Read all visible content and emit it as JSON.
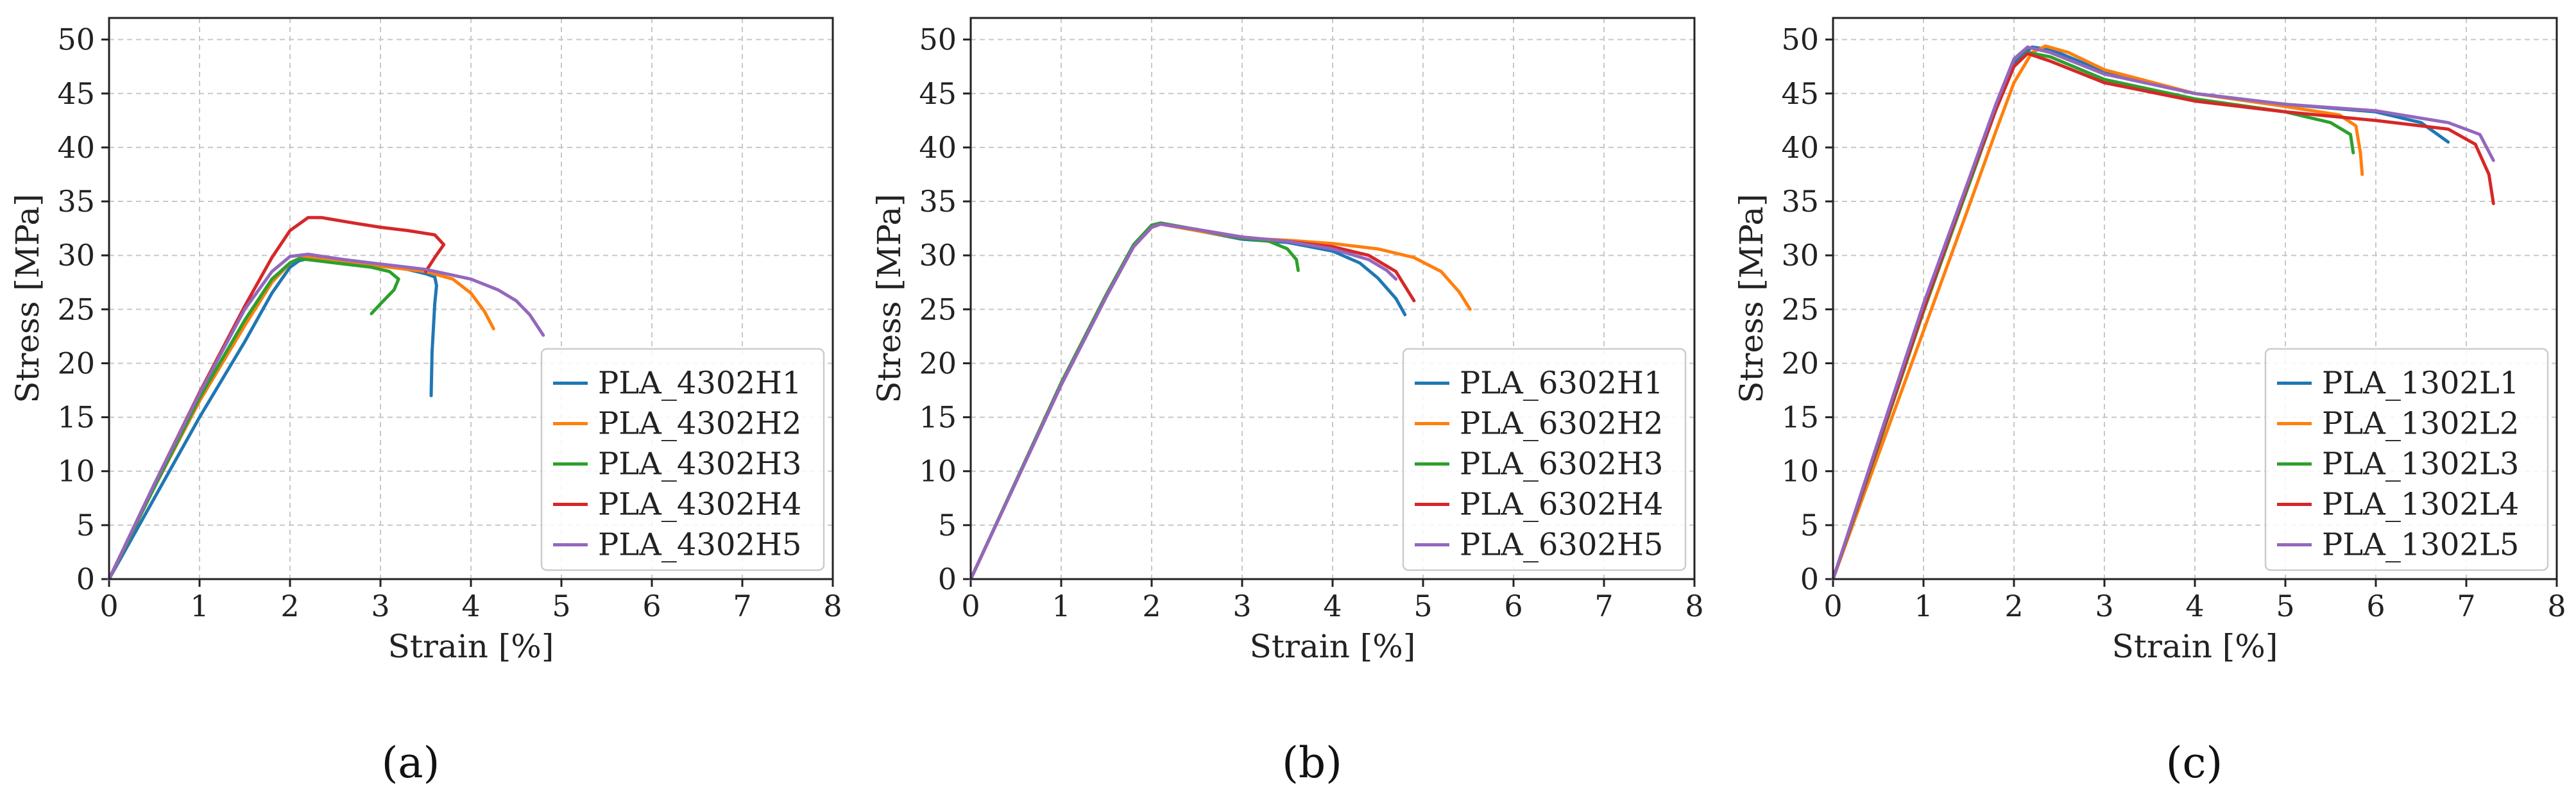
{
  "chart_data": [
    {
      "type": "line",
      "panel_label": "(a)",
      "xlabel": "Strain [%]",
      "ylabel": "Stress [MPa]",
      "xlim": [
        0,
        8
      ],
      "ylim": [
        0,
        52
      ],
      "x_ticks": [
        0,
        1,
        2,
        3,
        4,
        5,
        6,
        7,
        8
      ],
      "y_ticks": [
        0,
        5,
        10,
        15,
        20,
        25,
        30,
        35,
        40,
        45,
        50
      ],
      "grid": true,
      "legend_position": "lower-right",
      "series": [
        {
          "name": "PLA_4302H1",
          "color": "#1f77b4",
          "points": [
            [
              0,
              0
            ],
            [
              0.5,
              7.5
            ],
            [
              1,
              15
            ],
            [
              1.5,
              22
            ],
            [
              1.8,
              26.5
            ],
            [
              2.0,
              28.9
            ],
            [
              2.1,
              29.5
            ],
            [
              2.3,
              29.9
            ],
            [
              2.6,
              29.6
            ],
            [
              3.0,
              29.1
            ],
            [
              3.3,
              28.7
            ],
            [
              3.5,
              28.3
            ],
            [
              3.6,
              28.0
            ],
            [
              3.62,
              27.2
            ],
            [
              3.6,
              25.5
            ],
            [
              3.57,
              21
            ],
            [
              3.56,
              17
            ]
          ]
        },
        {
          "name": "PLA_4302H2",
          "color": "#ff7f0e",
          "points": [
            [
              0,
              0
            ],
            [
              0.5,
              8.5
            ],
            [
              1,
              16.5
            ],
            [
              1.5,
              23.5
            ],
            [
              1.8,
              27.5
            ],
            [
              2.0,
              29.3
            ],
            [
              2.15,
              29.9
            ],
            [
              2.5,
              29.6
            ],
            [
              3.0,
              29.0
            ],
            [
              3.5,
              28.5
            ],
            [
              3.8,
              27.8
            ],
            [
              4.0,
              26.5
            ],
            [
              4.15,
              24.8
            ],
            [
              4.25,
              23.2
            ]
          ]
        },
        {
          "name": "PLA_4302H3",
          "color": "#2ca02c",
          "points": [
            [
              0,
              0
            ],
            [
              0.5,
              8.5
            ],
            [
              1,
              16.8
            ],
            [
              1.5,
              24
            ],
            [
              1.8,
              27.8
            ],
            [
              2.0,
              29.3
            ],
            [
              2.1,
              29.7
            ],
            [
              2.5,
              29.3
            ],
            [
              2.9,
              28.9
            ],
            [
              3.1,
              28.5
            ],
            [
              3.2,
              27.8
            ],
            [
              3.15,
              26.8
            ],
            [
              3.0,
              25.5
            ],
            [
              2.9,
              24.6
            ]
          ]
        },
        {
          "name": "PLA_4302H4",
          "color": "#d62728",
          "points": [
            [
              0,
              0
            ],
            [
              0.5,
              8.8
            ],
            [
              1,
              17.3
            ],
            [
              1.5,
              25.3
            ],
            [
              1.8,
              29.8
            ],
            [
              2.0,
              32.3
            ],
            [
              2.2,
              33.5
            ],
            [
              2.35,
              33.5
            ],
            [
              2.7,
              33.0
            ],
            [
              3.0,
              32.6
            ],
            [
              3.3,
              32.3
            ],
            [
              3.6,
              31.9
            ],
            [
              3.7,
              31.0
            ],
            [
              3.6,
              29.8
            ],
            [
              3.5,
              28.5
            ]
          ]
        },
        {
          "name": "PLA_4302H5",
          "color": "#9467bd",
          "points": [
            [
              0,
              0
            ],
            [
              0.5,
              8.8
            ],
            [
              1,
              17.2
            ],
            [
              1.5,
              25
            ],
            [
              1.8,
              28.5
            ],
            [
              2.0,
              29.9
            ],
            [
              2.2,
              30.1
            ],
            [
              2.6,
              29.6
            ],
            [
              3.0,
              29.2
            ],
            [
              3.5,
              28.7
            ],
            [
              4.0,
              27.8
            ],
            [
              4.3,
              26.8
            ],
            [
              4.5,
              25.8
            ],
            [
              4.65,
              24.5
            ],
            [
              4.8,
              22.6
            ]
          ]
        }
      ]
    },
    {
      "type": "line",
      "panel_label": "(b)",
      "xlabel": "Strain [%]",
      "ylabel": "Stress [MPa]",
      "xlim": [
        0,
        8
      ],
      "ylim": [
        0,
        52
      ],
      "x_ticks": [
        0,
        1,
        2,
        3,
        4,
        5,
        6,
        7,
        8
      ],
      "y_ticks": [
        0,
        5,
        10,
        15,
        20,
        25,
        30,
        35,
        40,
        45,
        50
      ],
      "grid": true,
      "legend_position": "lower-right",
      "series": [
        {
          "name": "PLA_6302H1",
          "color": "#1f77b4",
          "points": [
            [
              0,
              0
            ],
            [
              0.5,
              9
            ],
            [
              1,
              18
            ],
            [
              1.5,
              26.2
            ],
            [
              1.8,
              30.8
            ],
            [
              2.0,
              32.6
            ],
            [
              2.1,
              32.9
            ],
            [
              2.5,
              32.3
            ],
            [
              3.0,
              31.5
            ],
            [
              3.5,
              31.2
            ],
            [
              4.0,
              30.4
            ],
            [
              4.3,
              29.3
            ],
            [
              4.5,
              27.9
            ],
            [
              4.7,
              26.0
            ],
            [
              4.8,
              24.5
            ]
          ]
        },
        {
          "name": "PLA_6302H2",
          "color": "#ff7f0e",
          "points": [
            [
              0,
              0
            ],
            [
              0.5,
              9
            ],
            [
              1,
              18
            ],
            [
              1.5,
              26.2
            ],
            [
              1.8,
              30.8
            ],
            [
              2.0,
              32.6
            ],
            [
              2.1,
              32.9
            ],
            [
              2.5,
              32.3
            ],
            [
              3.0,
              31.6
            ],
            [
              3.5,
              31.4
            ],
            [
              4.0,
              31.1
            ],
            [
              4.5,
              30.6
            ],
            [
              4.9,
              29.8
            ],
            [
              5.2,
              28.5
            ],
            [
              5.4,
              26.6
            ],
            [
              5.52,
              25.0
            ]
          ]
        },
        {
          "name": "PLA_6302H3",
          "color": "#2ca02c",
          "points": [
            [
              0,
              0
            ],
            [
              0.5,
              9.1
            ],
            [
              1,
              18.2
            ],
            [
              1.5,
              26.4
            ],
            [
              1.8,
              31.0
            ],
            [
              2.0,
              32.8
            ],
            [
              2.1,
              33.0
            ],
            [
              2.5,
              32.4
            ],
            [
              3.0,
              31.6
            ],
            [
              3.3,
              31.3
            ],
            [
              3.5,
              30.6
            ],
            [
              3.6,
              29.6
            ],
            [
              3.62,
              28.6
            ]
          ]
        },
        {
          "name": "PLA_6302H4",
          "color": "#d62728",
          "points": [
            [
              0,
              0
            ],
            [
              0.5,
              9
            ],
            [
              1,
              18
            ],
            [
              1.5,
              26.2
            ],
            [
              1.8,
              30.8
            ],
            [
              2.0,
              32.6
            ],
            [
              2.1,
              32.9
            ],
            [
              2.5,
              32.4
            ],
            [
              3.0,
              31.7
            ],
            [
              3.5,
              31.3
            ],
            [
              4.0,
              30.8
            ],
            [
              4.4,
              30.0
            ],
            [
              4.7,
              28.5
            ],
            [
              4.9,
              25.8
            ]
          ]
        },
        {
          "name": "PLA_6302H5",
          "color": "#9467bd",
          "points": [
            [
              0,
              0
            ],
            [
              0.5,
              9
            ],
            [
              1,
              18
            ],
            [
              1.5,
              26.2
            ],
            [
              1.8,
              30.8
            ],
            [
              2.0,
              32.6
            ],
            [
              2.1,
              32.9
            ],
            [
              2.5,
              32.4
            ],
            [
              3.0,
              31.7
            ],
            [
              3.5,
              31.3
            ],
            [
              4.0,
              30.6
            ],
            [
              4.4,
              29.6
            ],
            [
              4.6,
              28.6
            ],
            [
              4.7,
              27.8
            ]
          ]
        }
      ]
    },
    {
      "type": "line",
      "panel_label": "(c)",
      "xlabel": "Strain [%]",
      "ylabel": "Stress [MPa]",
      "xlim": [
        0,
        8
      ],
      "ylim": [
        0,
        52
      ],
      "x_ticks": [
        0,
        1,
        2,
        3,
        4,
        5,
        6,
        7,
        8
      ],
      "y_ticks": [
        0,
        5,
        10,
        15,
        20,
        25,
        30,
        35,
        40,
        45,
        50
      ],
      "grid": true,
      "legend_position": "lower-right",
      "series": [
        {
          "name": "PLA_1302L1",
          "color": "#1f77b4",
          "points": [
            [
              0,
              0
            ],
            [
              0.5,
              12.5
            ],
            [
              1,
              25
            ],
            [
              1.5,
              36.5
            ],
            [
              1.8,
              43.5
            ],
            [
              2.0,
              47.8
            ],
            [
              2.2,
              49.3
            ],
            [
              2.4,
              49.1
            ],
            [
              3.0,
              47.0
            ],
            [
              4.0,
              45.0
            ],
            [
              5.0,
              44.0
            ],
            [
              6.0,
              43.3
            ],
            [
              6.5,
              42.3
            ],
            [
              6.8,
              40.5
            ]
          ]
        },
        {
          "name": "PLA_1302L2",
          "color": "#ff7f0e",
          "points": [
            [
              0,
              0
            ],
            [
              0.5,
              11.5
            ],
            [
              1,
              23
            ],
            [
              1.5,
              34.5
            ],
            [
              1.8,
              41.5
            ],
            [
              2.0,
              46.0
            ],
            [
              2.2,
              48.8
            ],
            [
              2.35,
              49.4
            ],
            [
              2.6,
              48.8
            ],
            [
              3.0,
              47.2
            ],
            [
              4.0,
              45.0
            ],
            [
              5.0,
              43.8
            ],
            [
              5.6,
              43.0
            ],
            [
              5.78,
              42.0
            ],
            [
              5.83,
              39.5
            ],
            [
              5.85,
              37.5
            ]
          ]
        },
        {
          "name": "PLA_1302L3",
          "color": "#2ca02c",
          "points": [
            [
              0,
              0
            ],
            [
              0.5,
              12.3
            ],
            [
              1,
              24.8
            ],
            [
              1.5,
              36.5
            ],
            [
              1.8,
              43.5
            ],
            [
              2.0,
              47.5
            ],
            [
              2.15,
              48.8
            ],
            [
              2.4,
              48.4
            ],
            [
              3.0,
              46.3
            ],
            [
              4.0,
              44.5
            ],
            [
              5.0,
              43.3
            ],
            [
              5.5,
              42.3
            ],
            [
              5.72,
              41.2
            ],
            [
              5.75,
              39.5
            ]
          ]
        },
        {
          "name": "PLA_1302L4",
          "color": "#d62728",
          "points": [
            [
              0,
              0
            ],
            [
              0.5,
              12.5
            ],
            [
              1,
              25
            ],
            [
              1.5,
              36.8
            ],
            [
              1.8,
              43.5
            ],
            [
              2.0,
              47.5
            ],
            [
              2.15,
              48.7
            ],
            [
              2.4,
              48.0
            ],
            [
              3.0,
              46.0
            ],
            [
              4.0,
              44.3
            ],
            [
              5.0,
              43.3
            ],
            [
              6.0,
              42.5
            ],
            [
              6.8,
              41.7
            ],
            [
              7.1,
              40.3
            ],
            [
              7.25,
              37.5
            ],
            [
              7.3,
              34.8
            ]
          ]
        },
        {
          "name": "PLA_1302L5",
          "color": "#9467bd",
          "points": [
            [
              0,
              0
            ],
            [
              0.5,
              12.8
            ],
            [
              1,
              25.5
            ],
            [
              1.5,
              37
            ],
            [
              1.8,
              44
            ],
            [
              2.0,
              48.2
            ],
            [
              2.15,
              49.3
            ],
            [
              2.4,
              48.8
            ],
            [
              3.0,
              46.8
            ],
            [
              4.0,
              45.0
            ],
            [
              5.0,
              44.0
            ],
            [
              6.0,
              43.4
            ],
            [
              6.8,
              42.3
            ],
            [
              7.15,
              41.2
            ],
            [
              7.3,
              38.8
            ]
          ]
        }
      ]
    }
  ]
}
